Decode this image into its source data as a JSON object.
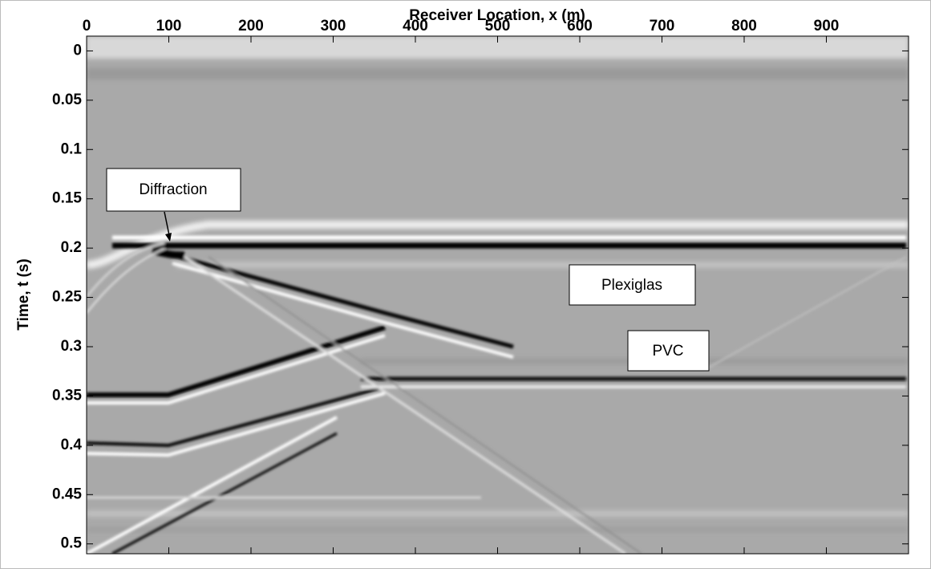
{
  "chart_data": {
    "type": "image",
    "x_label": "Receiver Location, x (m)",
    "y_label": "Time, t (s)",
    "xlim": [
      0,
      1000
    ],
    "ylim": [
      -0.015,
      0.51
    ],
    "xticks": [
      0,
      100,
      200,
      300,
      400,
      500,
      600,
      700,
      800,
      900
    ],
    "yticks": [
      0,
      0.05,
      0.1,
      0.15,
      0.2,
      0.25,
      0.3,
      0.35,
      0.4,
      0.45,
      0.5
    ],
    "annotations": [
      "Diffraction",
      "Plexiglas",
      "PVC"
    ]
  }
}
